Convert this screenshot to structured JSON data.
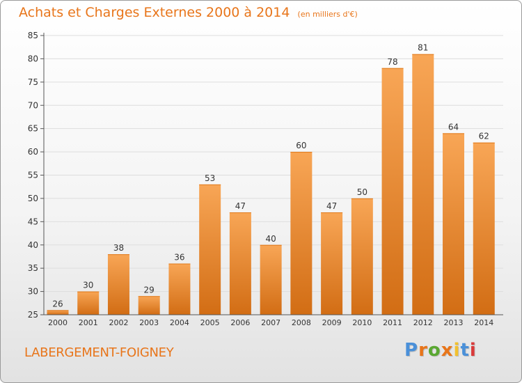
{
  "header": {
    "title": "Achats et Charges Externes 2000 à 2014",
    "unit": "(en milliers d'€)"
  },
  "footer": {
    "commune": "LABERGEMENT-FOIGNEY",
    "brand": "Proxiti",
    "brand_colors": [
      "#4a90d9",
      "#e8751a",
      "#5aa832",
      "#e8751a",
      "#f2c12e",
      "#4a90d9",
      "#d93a3a"
    ]
  },
  "colors": {
    "accent": "#e8751a",
    "bar_top": "#f8a656",
    "bar_bottom": "#d26d14",
    "grid": "#dddddd",
    "axis": "#555555",
    "label": "#333333"
  },
  "chart_data": {
    "type": "bar",
    "title": "Achats et Charges Externes 2000 à 2014",
    "subtitle": "(en milliers d'€)",
    "xlabel": "",
    "ylabel": "",
    "categories": [
      "2000",
      "2001",
      "2002",
      "2003",
      "2004",
      "2005",
      "2006",
      "2007",
      "2008",
      "2009",
      "2010",
      "2011",
      "2012",
      "2013",
      "2014"
    ],
    "values": [
      26,
      30,
      38,
      29,
      36,
      53,
      47,
      40,
      60,
      47,
      50,
      78,
      81,
      64,
      62
    ],
    "ylim": [
      25,
      85
    ],
    "yticks": [
      25,
      30,
      35,
      40,
      45,
      50,
      55,
      60,
      65,
      70,
      75,
      80,
      85
    ],
    "grid": true,
    "legend": "none",
    "data_labels": true
  }
}
